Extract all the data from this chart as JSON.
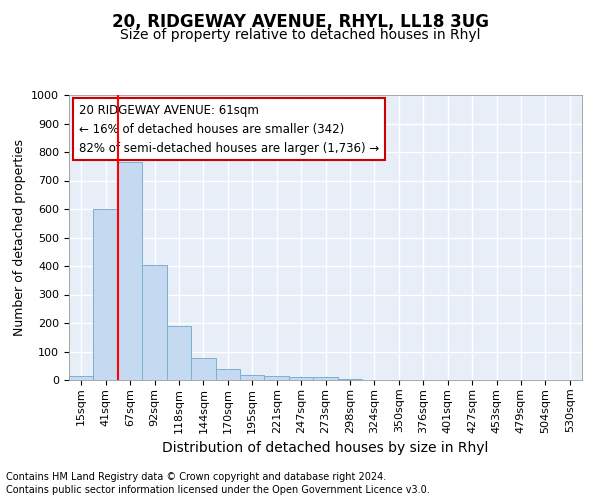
{
  "title1": "20, RIDGEWAY AVENUE, RHYL, LL18 3UG",
  "title2": "Size of property relative to detached houses in Rhyl",
  "xlabel": "Distribution of detached houses by size in Rhyl",
  "ylabel": "Number of detached properties",
  "bar_labels": [
    "15sqm",
    "41sqm",
    "67sqm",
    "92sqm",
    "118sqm",
    "144sqm",
    "170sqm",
    "195sqm",
    "221sqm",
    "247sqm",
    "273sqm",
    "298sqm",
    "324sqm",
    "350sqm",
    "376sqm",
    "401sqm",
    "427sqm",
    "453sqm",
    "479sqm",
    "504sqm",
    "530sqm"
  ],
  "bar_values": [
    15,
    600,
    765,
    405,
    190,
    78,
    38,
    18,
    15,
    10,
    12,
    5,
    0,
    0,
    0,
    0,
    0,
    0,
    0,
    0,
    0
  ],
  "bar_color": "#c5d9f0",
  "bar_edge_color": "#7bafd4",
  "red_line_x": 2.0,
  "annotation_text": "20 RIDGEWAY AVENUE: 61sqm\n← 16% of detached houses are smaller (342)\n82% of semi-detached houses are larger (1,736) →",
  "annotation_box_color": "#ffffff",
  "annotation_box_edge": "#cc0000",
  "ylim": [
    0,
    1000
  ],
  "yticks": [
    0,
    100,
    200,
    300,
    400,
    500,
    600,
    700,
    800,
    900,
    1000
  ],
  "footer1": "Contains HM Land Registry data © Crown copyright and database right 2024.",
  "footer2": "Contains public sector information licensed under the Open Government Licence v3.0.",
  "fig_bg_color": "#ffffff",
  "plot_bg_color": "#e8eef8",
  "grid_color": "#ffffff",
  "title1_fontsize": 12,
  "title2_fontsize": 10,
  "xlabel_fontsize": 10,
  "ylabel_fontsize": 9,
  "tick_fontsize": 8,
  "footer_fontsize": 7,
  "annot_fontsize": 8.5
}
